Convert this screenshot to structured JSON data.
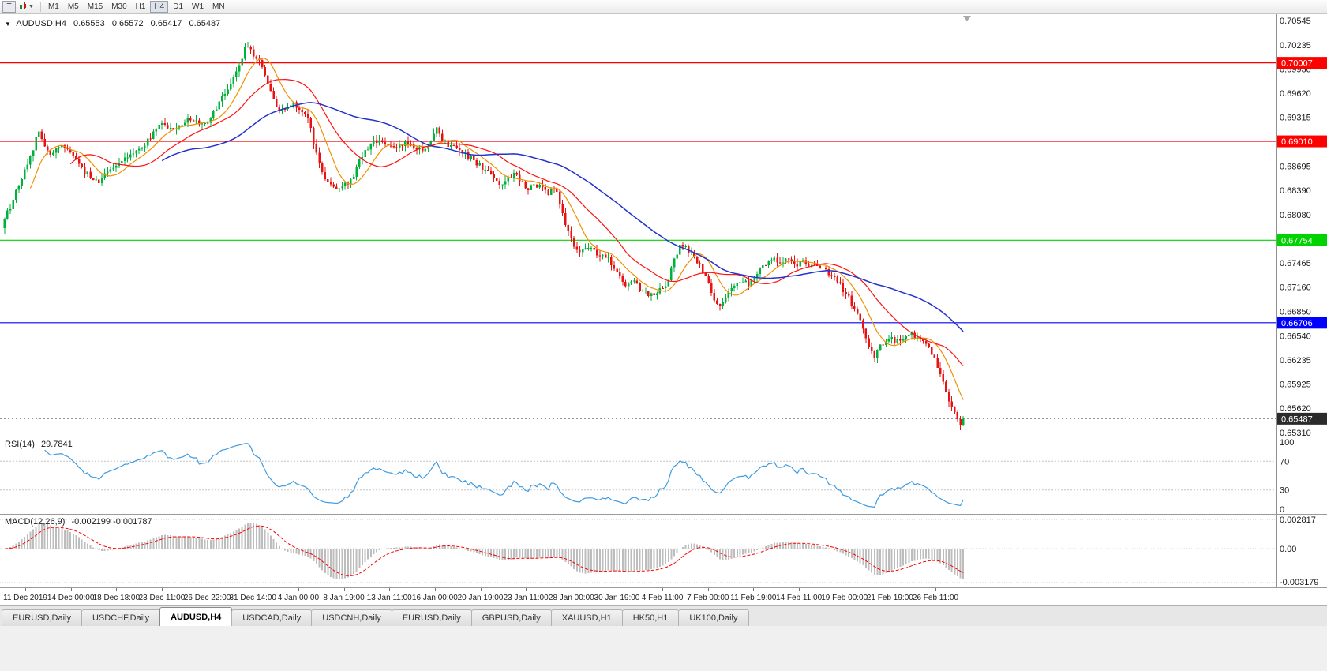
{
  "toolbar": {
    "text_tool_label": "T",
    "timeframes": [
      "M1",
      "M5",
      "M15",
      "M30",
      "H1",
      "H4",
      "D1",
      "W1",
      "MN"
    ],
    "active_timeframe": "H4"
  },
  "chart_title": {
    "symbol_period": "AUDUSD,H4",
    "open": "0.65553",
    "high": "0.65572",
    "low": "0.65417",
    "close": "0.65487"
  },
  "tabs": {
    "items": [
      "EURUSD,Daily",
      "USDCHF,Daily",
      "AUDUSD,H4",
      "USDCAD,Daily",
      "USDCNH,Daily",
      "EURUSD,Daily",
      "GBPUSD,Daily",
      "XAUUSD,H1",
      "HK50,H1",
      "UK100,Daily"
    ],
    "active_index": 2
  },
  "chart_data": {
    "type": "candlestick",
    "symbol": "AUDUSD",
    "timeframe": "H4",
    "price_range": [
      0.6526,
      0.70625
    ],
    "price_axis_ticks": [
      0.70545,
      0.70235,
      0.6993,
      0.6962,
      0.69315,
      0.6901,
      0.68695,
      0.6839,
      0.6808,
      0.67465,
      0.6716,
      0.6685,
      0.6654,
      0.66235,
      0.65925,
      0.6562,
      0.6531
    ],
    "levels": [
      {
        "price": 0.70007,
        "label": "0.70007",
        "color": "#ff0000"
      },
      {
        "price": 0.6901,
        "label": "0.69010",
        "color": "#ff0000"
      },
      {
        "price": 0.67754,
        "label": "0.67754",
        "color": "#00d400"
      },
      {
        "price": 0.66706,
        "label": "0.66706",
        "color": "#0000ff"
      }
    ],
    "current_price": {
      "value": 0.65487,
      "label": "0.65487",
      "bg": "#2b2b2b"
    },
    "candles": {
      "count": 336,
      "up_color": "#00b23c",
      "down_color": "#e81212",
      "wiggle": 0.00035,
      "path": [
        [
          0.0,
          0.6805
        ],
        [
          0.006,
          0.6818
        ],
        [
          0.013,
          0.6842
        ],
        [
          0.022,
          0.6868
        ],
        [
          0.03,
          0.6892
        ],
        [
          0.036,
          0.6916
        ],
        [
          0.042,
          0.6895
        ],
        [
          0.048,
          0.6885
        ],
        [
          0.058,
          0.6897
        ],
        [
          0.066,
          0.6888
        ],
        [
          0.074,
          0.688
        ],
        [
          0.083,
          0.6862
        ],
        [
          0.091,
          0.6856
        ],
        [
          0.098,
          0.685
        ],
        [
          0.106,
          0.686
        ],
        [
          0.113,
          0.6868
        ],
        [
          0.121,
          0.6875
        ],
        [
          0.129,
          0.688
        ],
        [
          0.138,
          0.6888
        ],
        [
          0.146,
          0.6898
        ],
        [
          0.155,
          0.6912
        ],
        [
          0.163,
          0.6922
        ],
        [
          0.171,
          0.6917
        ],
        [
          0.18,
          0.692
        ],
        [
          0.188,
          0.6928
        ],
        [
          0.196,
          0.693
        ],
        [
          0.203,
          0.6923
        ],
        [
          0.211,
          0.6921
        ],
        [
          0.219,
          0.694
        ],
        [
          0.227,
          0.6958
        ],
        [
          0.235,
          0.6975
        ],
        [
          0.242,
          0.6992
        ],
        [
          0.248,
          0.701
        ],
        [
          0.253,
          0.7024
        ],
        [
          0.258,
          0.7014
        ],
        [
          0.263,
          0.7008
        ],
        [
          0.268,
          0.7
        ],
        [
          0.273,
          0.698
        ],
        [
          0.278,
          0.6962
        ],
        [
          0.285,
          0.6945
        ],
        [
          0.291,
          0.6938
        ],
        [
          0.297,
          0.695
        ],
        [
          0.303,
          0.6946
        ],
        [
          0.31,
          0.694
        ],
        [
          0.317,
          0.6928
        ],
        [
          0.323,
          0.6895
        ],
        [
          0.329,
          0.6868
        ],
        [
          0.335,
          0.6852
        ],
        [
          0.342,
          0.6845
        ],
        [
          0.349,
          0.684
        ],
        [
          0.356,
          0.6847
        ],
        [
          0.362,
          0.6853
        ],
        [
          0.369,
          0.6873
        ],
        [
          0.376,
          0.6888
        ],
        [
          0.383,
          0.6898
        ],
        [
          0.39,
          0.6903
        ],
        [
          0.397,
          0.6898
        ],
        [
          0.404,
          0.6892
        ],
        [
          0.412,
          0.6896
        ],
        [
          0.42,
          0.6899
        ],
        [
          0.428,
          0.6893
        ],
        [
          0.436,
          0.689
        ],
        [
          0.444,
          0.6898
        ],
        [
          0.45,
          0.6917
        ],
        [
          0.455,
          0.6905
        ],
        [
          0.462,
          0.6897
        ],
        [
          0.47,
          0.6892
        ],
        [
          0.478,
          0.6888
        ],
        [
          0.486,
          0.688
        ],
        [
          0.494,
          0.6872
        ],
        [
          0.501,
          0.6865
        ],
        [
          0.509,
          0.6858
        ],
        [
          0.517,
          0.6848
        ],
        [
          0.524,
          0.6853
        ],
        [
          0.531,
          0.6861
        ],
        [
          0.538,
          0.685
        ],
        [
          0.546,
          0.684
        ],
        [
          0.553,
          0.6846
        ],
        [
          0.56,
          0.6843
        ],
        [
          0.567,
          0.6836
        ],
        [
          0.574,
          0.6841
        ],
        [
          0.581,
          0.6817
        ],
        [
          0.587,
          0.6788
        ],
        [
          0.593,
          0.677
        ],
        [
          0.6,
          0.6761
        ],
        [
          0.607,
          0.6769
        ],
        [
          0.614,
          0.6763
        ],
        [
          0.621,
          0.6752
        ],
        [
          0.628,
          0.6757
        ],
        [
          0.635,
          0.6742
        ],
        [
          0.642,
          0.6729
        ],
        [
          0.649,
          0.6718
        ],
        [
          0.656,
          0.6724
        ],
        [
          0.663,
          0.6712
        ],
        [
          0.67,
          0.6707
        ],
        [
          0.677,
          0.6705
        ],
        [
          0.684,
          0.6713
        ],
        [
          0.691,
          0.6722
        ],
        [
          0.698,
          0.6748
        ],
        [
          0.704,
          0.677
        ],
        [
          0.71,
          0.6766
        ],
        [
          0.716,
          0.6759
        ],
        [
          0.723,
          0.6747
        ],
        [
          0.731,
          0.6731
        ],
        [
          0.739,
          0.6703
        ],
        [
          0.745,
          0.6691
        ],
        [
          0.752,
          0.6702
        ],
        [
          0.76,
          0.6716
        ],
        [
          0.768,
          0.6723
        ],
        [
          0.776,
          0.6719
        ],
        [
          0.784,
          0.6731
        ],
        [
          0.792,
          0.6742
        ],
        [
          0.8,
          0.6753
        ],
        [
          0.809,
          0.6746
        ],
        [
          0.817,
          0.6751
        ],
        [
          0.825,
          0.6743
        ],
        [
          0.833,
          0.6749
        ],
        [
          0.841,
          0.6741
        ],
        [
          0.85,
          0.6744
        ],
        [
          0.858,
          0.6736
        ],
        [
          0.866,
          0.6727
        ],
        [
          0.874,
          0.6713
        ],
        [
          0.882,
          0.6699
        ],
        [
          0.89,
          0.6682
        ],
        [
          0.898,
          0.6655
        ],
        [
          0.906,
          0.6626
        ],
        [
          0.914,
          0.6641
        ],
        [
          0.922,
          0.6653
        ],
        [
          0.93,
          0.6646
        ],
        [
          0.938,
          0.6653
        ],
        [
          0.946,
          0.6656
        ],
        [
          0.954,
          0.6649
        ],
        [
          0.962,
          0.6642
        ],
        [
          0.97,
          0.6627
        ],
        [
          0.977,
          0.6602
        ],
        [
          0.985,
          0.6572
        ],
        [
          0.99,
          0.6558
        ],
        [
          0.995,
          0.6546
        ],
        [
          0.998,
          0.6537
        ],
        [
          1.0,
          0.65487
        ]
      ]
    },
    "moving_averages": [
      {
        "name": "fast",
        "period": 10,
        "color": "#f09000"
      },
      {
        "name": "medium",
        "period": 24,
        "color": "#ff1111"
      },
      {
        "name": "slow",
        "period": 56,
        "color": "#2233cc"
      }
    ],
    "rsi": {
      "label": "RSI(14)",
      "value_text": "29.7841",
      "period": 14,
      "axis_ticks": [
        100,
        70,
        30,
        0
      ],
      "guide_levels": [
        70,
        30
      ],
      "color": "#3d9be0"
    },
    "macd": {
      "label": "MACD(12,26,9)",
      "value_text": "-0.002199 -0.001787",
      "fast": 12,
      "slow": 26,
      "signal": 9,
      "axis_top_label": "0.002817",
      "axis_zero_label": "0.00",
      "axis_bottom_label": "-0.003179",
      "hist_color": "#bdbdbd",
      "signal_color": "#ff0000"
    },
    "time_axis_labels": [
      "11 Dec 2019",
      "14 Dec 00:00",
      "18 Dec 18:00",
      "23 Dec 11:00",
      "26 Dec 22:00",
      "31 Dec 14:00",
      "4 Jan 00:00",
      "8 Jan 19:00",
      "13 Jan 11:00",
      "16 Jan 00:00",
      "20 Jan 19:00",
      "23 Jan 11:00",
      "28 Jan 00:00",
      "30 Jan 19:00",
      "4 Feb 11:00",
      "7 Feb 00:00",
      "11 Feb 19:00",
      "14 Feb 11:00",
      "19 Feb 00:00",
      "21 Feb 19:00",
      "26 Feb 11:00"
    ]
  }
}
